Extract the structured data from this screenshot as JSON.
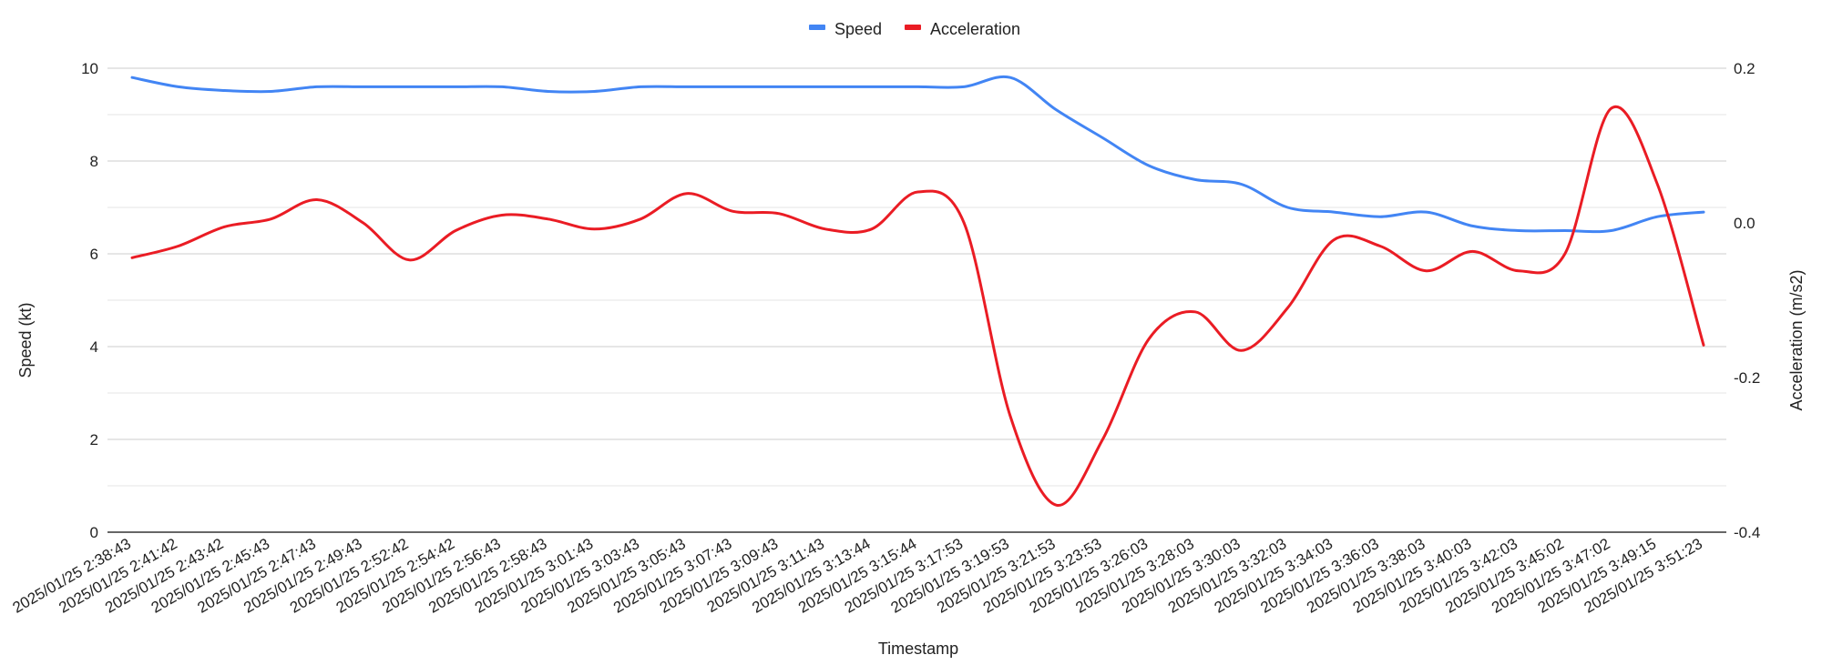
{
  "chart_data": {
    "type": "line",
    "title": "",
    "xlabel": "Timestamp",
    "ylabel_left": "Speed (kt)",
    "ylabel_right": "Acceleration (m/s2)",
    "ylim_left": [
      0,
      10
    ],
    "ylim_right": [
      -0.4,
      0.2
    ],
    "yticks_left": [
      "0",
      "2",
      "4",
      "6",
      "8",
      "10"
    ],
    "yticks_right": [
      "-0.4",
      "-0.2",
      "0.0",
      "0.2"
    ],
    "grid": true,
    "legend_position": "top",
    "categories": [
      "2025/01/25 2:38:43",
      "2025/01/25 2:41:42",
      "2025/01/25 2:43:42",
      "2025/01/25 2:45:43",
      "2025/01/25 2:47:43",
      "2025/01/25 2:49:43",
      "2025/01/25 2:52:42",
      "2025/01/25 2:54:42",
      "2025/01/25 2:56:43",
      "2025/01/25 2:58:43",
      "2025/01/25 3:01:43",
      "2025/01/25 3:03:43",
      "2025/01/25 3:05:43",
      "2025/01/25 3:07:43",
      "2025/01/25 3:09:43",
      "2025/01/25 3:11:43",
      "2025/01/25 3:13:44",
      "2025/01/25 3:15:44",
      "2025/01/25 3:17:53",
      "2025/01/25 3:19:53",
      "2025/01/25 3:21:53",
      "2025/01/25 3:23:53",
      "2025/01/25 3:26:03",
      "2025/01/25 3:28:03",
      "2025/01/25 3:30:03",
      "2025/01/25 3:32:03",
      "2025/01/25 3:34:03",
      "2025/01/25 3:36:03",
      "2025/01/25 3:38:03",
      "2025/01/25 3:40:03",
      "2025/01/25 3:42:03",
      "2025/01/25 3:45:02",
      "2025/01/25 3:47:02",
      "2025/01/25 3:49:15",
      "2025/01/25 3:51:23"
    ],
    "series": [
      {
        "name": "Speed",
        "axis": "left",
        "color": "#4285f4",
        "values": [
          9.8,
          9.6,
          9.52,
          9.5,
          9.6,
          9.6,
          9.6,
          9.6,
          9.6,
          9.5,
          9.5,
          9.6,
          9.6,
          9.6,
          9.6,
          9.6,
          9.6,
          9.6,
          9.6,
          9.8,
          9.1,
          8.5,
          7.9,
          7.6,
          7.5,
          7.0,
          6.9,
          6.8,
          6.9,
          6.6,
          6.5,
          6.5,
          6.5,
          6.8,
          6.9
        ]
      },
      {
        "name": "Acceleration",
        "axis": "right",
        "color": "#ea1c24",
        "values": [
          -0.045,
          -0.03,
          -0.005,
          0.005,
          0.03,
          0.0,
          -0.048,
          -0.01,
          0.01,
          0.005,
          -0.008,
          0.005,
          0.038,
          0.015,
          0.012,
          -0.008,
          -0.008,
          0.04,
          0.0,
          -0.25,
          -0.365,
          -0.28,
          -0.15,
          -0.115,
          -0.165,
          -0.11,
          -0.022,
          -0.03,
          -0.062,
          -0.037,
          -0.062,
          -0.04,
          0.148,
          0.05,
          -0.158
        ]
      }
    ]
  }
}
